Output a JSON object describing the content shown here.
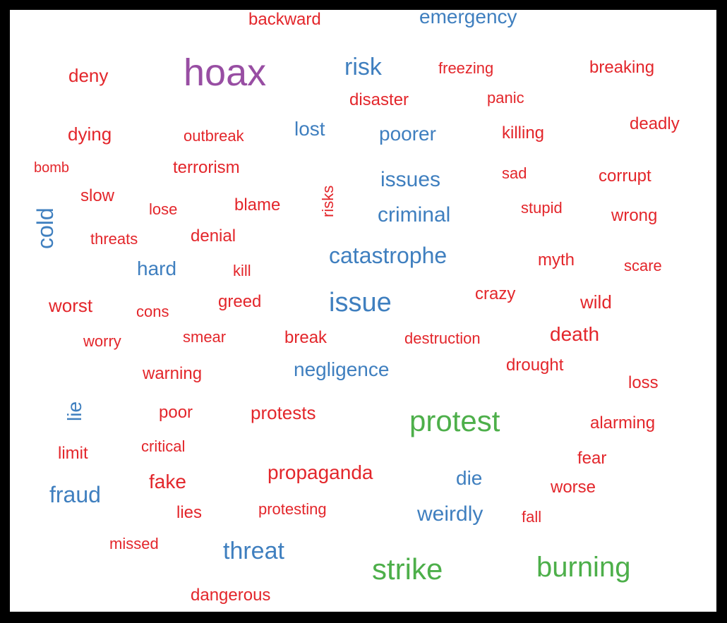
{
  "colors": {
    "red": "#e3262b",
    "blue": "#3f7fbf",
    "green": "#4daf4a",
    "purple": "#984ea3"
  },
  "words": [
    {
      "text": "backward",
      "color": "red"
    },
    {
      "text": "emergency",
      "color": "blue"
    },
    {
      "text": "hoax",
      "color": "purple"
    },
    {
      "text": "risk",
      "color": "blue"
    },
    {
      "text": "freezing",
      "color": "red"
    },
    {
      "text": "breaking",
      "color": "red"
    },
    {
      "text": "deny",
      "color": "red"
    },
    {
      "text": "disaster",
      "color": "red"
    },
    {
      "text": "panic",
      "color": "red"
    },
    {
      "text": "dying",
      "color": "red"
    },
    {
      "text": "outbreak",
      "color": "red"
    },
    {
      "text": "lost",
      "color": "blue"
    },
    {
      "text": "poorer",
      "color": "blue"
    },
    {
      "text": "killing",
      "color": "red"
    },
    {
      "text": "deadly",
      "color": "red"
    },
    {
      "text": "bomb",
      "color": "red"
    },
    {
      "text": "terrorism",
      "color": "red"
    },
    {
      "text": "issues",
      "color": "blue"
    },
    {
      "text": "sad",
      "color": "red"
    },
    {
      "text": "corrupt",
      "color": "red"
    },
    {
      "text": "slow",
      "color": "red"
    },
    {
      "text": "risks",
      "color": "red"
    },
    {
      "text": "cold",
      "color": "blue"
    },
    {
      "text": "lose",
      "color": "red"
    },
    {
      "text": "blame",
      "color": "red"
    },
    {
      "text": "stupid",
      "color": "red"
    },
    {
      "text": "criminal",
      "color": "blue"
    },
    {
      "text": "wrong",
      "color": "red"
    },
    {
      "text": "threats",
      "color": "red"
    },
    {
      "text": "denial",
      "color": "red"
    },
    {
      "text": "catastrophe",
      "color": "blue"
    },
    {
      "text": "myth",
      "color": "red"
    },
    {
      "text": "hard",
      "color": "blue"
    },
    {
      "text": "kill",
      "color": "red"
    },
    {
      "text": "scare",
      "color": "red"
    },
    {
      "text": "crazy",
      "color": "red"
    },
    {
      "text": "issue",
      "color": "blue"
    },
    {
      "text": "worst",
      "color": "red"
    },
    {
      "text": "greed",
      "color": "red"
    },
    {
      "text": "cons",
      "color": "red"
    },
    {
      "text": "wild",
      "color": "red"
    },
    {
      "text": "worry",
      "color": "red"
    },
    {
      "text": "smear",
      "color": "red"
    },
    {
      "text": "break",
      "color": "red"
    },
    {
      "text": "destruction",
      "color": "red"
    },
    {
      "text": "death",
      "color": "red"
    },
    {
      "text": "warning",
      "color": "red"
    },
    {
      "text": "negligence",
      "color": "blue"
    },
    {
      "text": "drought",
      "color": "red"
    },
    {
      "text": "loss",
      "color": "red"
    },
    {
      "text": "lie",
      "color": "blue"
    },
    {
      "text": "poor",
      "color": "red"
    },
    {
      "text": "protests",
      "color": "red"
    },
    {
      "text": "protest",
      "color": "green"
    },
    {
      "text": "alarming",
      "color": "red"
    },
    {
      "text": "limit",
      "color": "red"
    },
    {
      "text": "critical",
      "color": "red"
    },
    {
      "text": "fear",
      "color": "red"
    },
    {
      "text": "fake",
      "color": "red"
    },
    {
      "text": "propaganda",
      "color": "red"
    },
    {
      "text": "die",
      "color": "blue"
    },
    {
      "text": "fraud",
      "color": "blue"
    },
    {
      "text": "worse",
      "color": "red"
    },
    {
      "text": "lies",
      "color": "red"
    },
    {
      "text": "protesting",
      "color": "red"
    },
    {
      "text": "weirdly",
      "color": "blue"
    },
    {
      "text": "fall",
      "color": "red"
    },
    {
      "text": "missed",
      "color": "red"
    },
    {
      "text": "threat",
      "color": "blue"
    },
    {
      "text": "strike",
      "color": "green"
    },
    {
      "text": "burning",
      "color": "green"
    },
    {
      "text": "dangerous",
      "color": "red"
    }
  ]
}
